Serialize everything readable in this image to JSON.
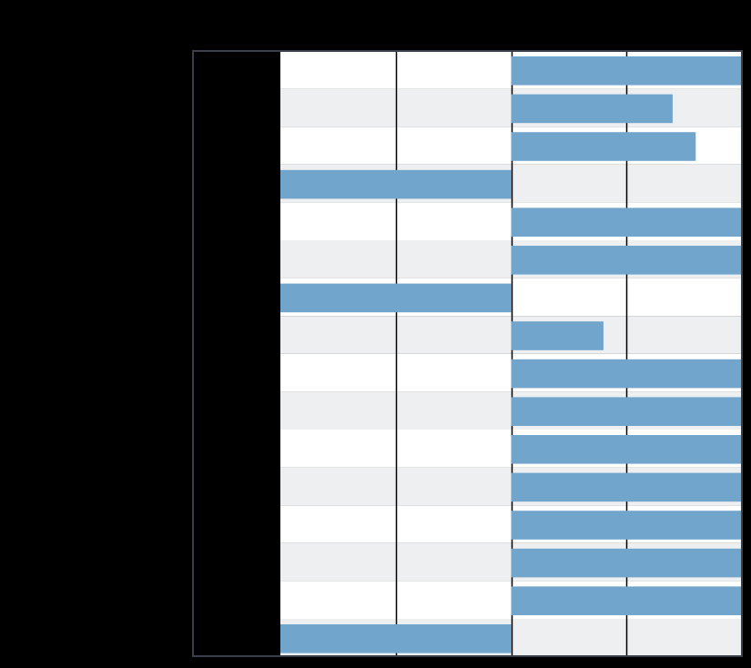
{
  "chart_data": {
    "type": "bar",
    "orientation": "horizontal",
    "title": "",
    "xlabel": "",
    "ylabel": "",
    "xlim": [
      -2,
      2
    ],
    "xticks": [
      -2,
      -1,
      0,
      1,
      2
    ],
    "grid": true,
    "row_banding": true,
    "categories": [
      "",
      "",
      "",
      "",
      "",
      "",
      "",
      "",
      "",
      "",
      "",
      "",
      "",
      "",
      "",
      ""
    ],
    "values": [
      2.0,
      1.4,
      1.6,
      -2.0,
      2.0,
      2.0,
      -2.0,
      0.8,
      2.0,
      2.0,
      2.0,
      2.0,
      2.0,
      2.0,
      2.0,
      -2.0
    ]
  },
  "colors": {
    "background": "#000000",
    "bar": "#72a5cc",
    "band_light": "#ffffff",
    "band_shaded": "#eeeff1",
    "gridline": "#000000",
    "frame": "#3a3f4b",
    "label_column": "#000000"
  }
}
